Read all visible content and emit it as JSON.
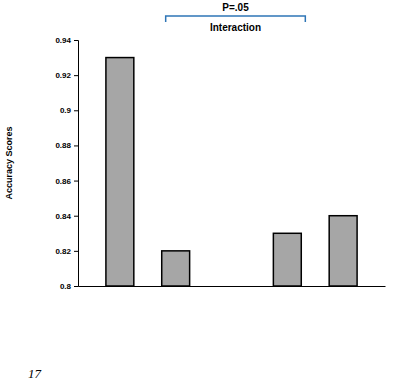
{
  "chart_data": {
    "type": "bar",
    "y_label": "Accuracy Scores",
    "categories": [
      null,
      null,
      null,
      null,
      null
    ],
    "values": [
      0.93,
      0.82,
      null,
      0.83,
      0.84
    ],
    "color": "#a6a6a6",
    "ylim": [
      0.8,
      0.94
    ],
    "yticks": [
      0.8,
      0.82,
      0.84,
      0.86,
      0.88,
      0.9,
      0.92,
      0.94
    ],
    "grid": false,
    "annotations": [
      "P=.05",
      "Interaction",
      "17"
    ]
  }
}
